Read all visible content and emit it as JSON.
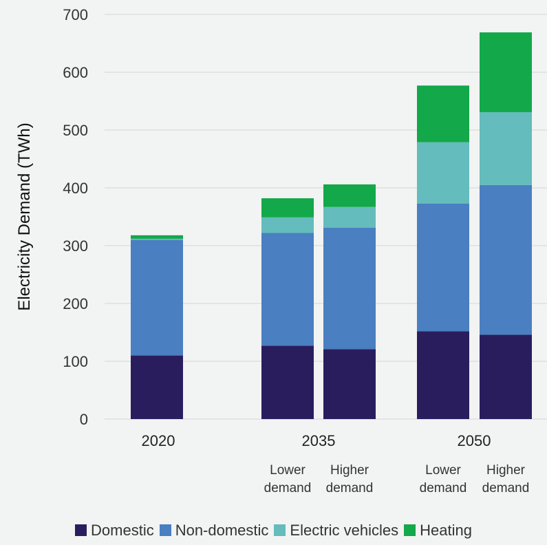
{
  "chart_data": {
    "type": "bar",
    "stacked": true,
    "title": "",
    "xlabel": "",
    "ylabel": "Electricity Demand (TWh)",
    "ylim": [
      0,
      700
    ],
    "yticks": [
      0,
      100,
      200,
      300,
      400,
      500,
      600,
      700
    ],
    "grid": true,
    "legend_position": "bottom",
    "groups": [
      {
        "label": "2020",
        "bars": [
          {
            "sublabel": [
              "",
              ""
            ],
            "values": [
              110,
              200,
              2,
              6
            ]
          }
        ]
      },
      {
        "label": "2035",
        "bars": [
          {
            "sublabel": [
              "Lower",
              "demand"
            ],
            "values": [
              127,
              195,
              27,
              33
            ]
          },
          {
            "sublabel": [
              "Higher",
              "demand"
            ],
            "values": [
              121,
              210,
              36,
              39
            ]
          }
        ]
      },
      {
        "label": "2050",
        "bars": [
          {
            "sublabel": [
              "Lower",
              "demand"
            ],
            "values": [
              152,
              221,
              106,
              98
            ]
          },
          {
            "sublabel": [
              "Higher",
              "demand"
            ],
            "values": [
              146,
              259,
              126,
              138
            ]
          }
        ]
      }
    ],
    "series": [
      {
        "name": "Domestic",
        "color": "#2a1d5e"
      },
      {
        "name": "Non-domestic",
        "color": "#4a7fc1"
      },
      {
        "name": "Electric vehicles",
        "color": "#64bcbc"
      },
      {
        "name": "Heating",
        "color": "#13a84a"
      }
    ]
  }
}
